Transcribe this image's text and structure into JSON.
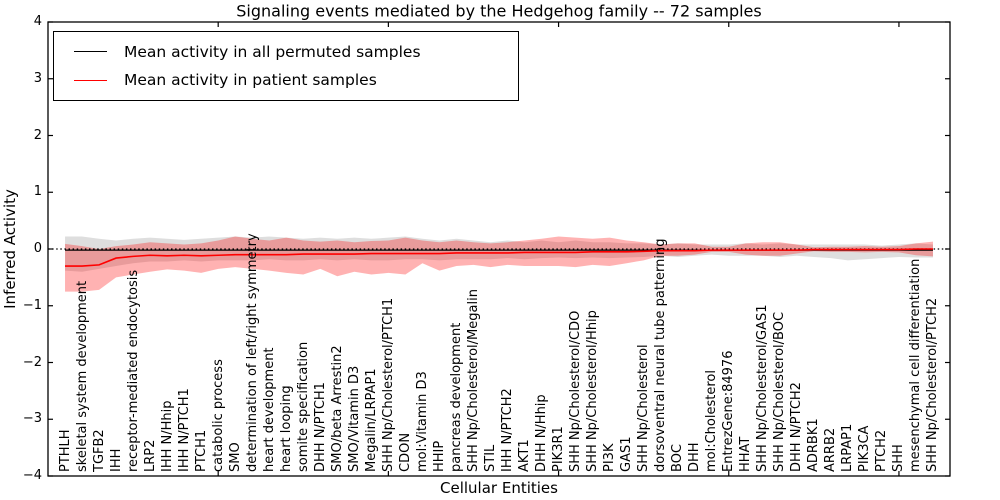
{
  "title": "Signaling events mediated by the Hedgehog family -- 72 samples",
  "legend": {
    "items": [
      {
        "label": "Mean activity in all permuted samples",
        "color": "#000000"
      },
      {
        "label": "Mean activity in patient samples",
        "color": "#ff0000"
      }
    ],
    "position": "upper left"
  },
  "axes": {
    "xlabel": "Cellular Entities",
    "ylabel": "Inferred Activity",
    "ylim": [
      -4,
      4
    ],
    "xlim": [
      0,
      53
    ],
    "yticks": [
      4,
      3,
      2,
      1,
      0,
      -1,
      -2,
      -3,
      -4
    ],
    "ytick_labels": [
      "4",
      "3",
      "2",
      "1",
      "0",
      "−1",
      "−2",
      "−3",
      "−4"
    ],
    "xticks": [
      10,
      20,
      30,
      40,
      50
    ],
    "grid": false
  },
  "chart_data": {
    "type": "line",
    "title": "Signaling events mediated by the Hedgehog family -- 72 samples",
    "xlabel": "Cellular Entities",
    "ylabel": "Inferred Activity",
    "ylim": [
      -4,
      4
    ],
    "legend_position": "upper left",
    "categories": [
      "PTHLH",
      "skeletal system development",
      "TGFB2",
      "IHH",
      "receptor-mediated endocytosis",
      "LRP2",
      "IHH N/Hhip",
      "IHH N/PTCH1",
      "PTCH1",
      "catabolic process",
      "SMO",
      "determination of left/right symmetry",
      "heart development",
      "heart looping",
      "somite specification",
      "DHH N/PTCH1",
      "SMO/beta Arrestin2",
      "SMO/Vitamin D3",
      "Megalin/LRPAP1",
      "SHH Np/Cholesterol/PTCH1",
      "CDON",
      "mol:Vitamin D3",
      "HHIP",
      "pancreas development",
      "SHH Np/Cholesterol/Megalin",
      "STIL",
      "IHH N/PTCH2",
      "AKT1",
      "DHH N/Hhip",
      "PIK3R1",
      "SHH Np/Cholesterol/CDO",
      "SHH Np/Cholesterol/Hhip",
      "PI3K",
      "GAS1",
      "SHH Np/Cholesterol",
      "dorsoventral neural tube patterning",
      "BOC",
      "DHH",
      "mol:Cholesterol",
      "EntrezGene:84976",
      "HHAT",
      "SHH Np/Cholesterol/GAS1",
      "SHH Np/Cholesterol/BOC",
      "DHH N/PTCH2",
      "ADRBK1",
      "ARRB2",
      "LRPAP1",
      "PIK3CA",
      "PTCH2",
      "SHH",
      "mesenchymal cell differentiation",
      "SHH Np/Cholesterol/PTCH2"
    ],
    "series": [
      {
        "name": "Mean activity in all permuted samples",
        "color": "#000000",
        "line_width": 1.3,
        "values": [
          -0.02,
          -0.02,
          -0.02,
          -0.02,
          -0.02,
          -0.02,
          -0.02,
          -0.02,
          -0.02,
          -0.02,
          -0.02,
          -0.02,
          -0.02,
          -0.02,
          -0.02,
          -0.02,
          -0.02,
          -0.02,
          -0.02,
          -0.02,
          -0.02,
          -0.02,
          -0.02,
          -0.02,
          -0.02,
          -0.02,
          -0.02,
          -0.02,
          -0.02,
          -0.02,
          -0.02,
          -0.02,
          -0.02,
          -0.02,
          -0.02,
          -0.02,
          -0.02,
          -0.02,
          -0.02,
          -0.02,
          -0.02,
          -0.02,
          -0.02,
          -0.02,
          -0.02,
          -0.02,
          -0.02,
          -0.02,
          -0.02,
          -0.02,
          -0.02,
          -0.02
        ]
      },
      {
        "name": "Mean activity in patient samples",
        "color": "#ff0000",
        "line_width": 1.6,
        "values": [
          -0.3,
          -0.3,
          -0.28,
          -0.16,
          -0.13,
          -0.11,
          -0.12,
          -0.11,
          -0.12,
          -0.11,
          -0.1,
          -0.1,
          -0.1,
          -0.1,
          -0.09,
          -0.09,
          -0.09,
          -0.09,
          -0.08,
          -0.08,
          -0.08,
          -0.08,
          -0.08,
          -0.07,
          -0.07,
          -0.07,
          -0.07,
          -0.06,
          -0.06,
          -0.06,
          -0.06,
          -0.05,
          -0.05,
          -0.05,
          -0.04,
          -0.03,
          -0.03,
          -0.03,
          -0.02,
          -0.02,
          -0.02,
          -0.02,
          -0.02,
          -0.02,
          -0.01,
          -0.01,
          -0.01,
          -0.01,
          -0.01,
          -0.01,
          0.0,
          0.0
        ]
      }
    ],
    "bands": [
      {
        "name": "permuted-samples-range",
        "color": "#000000",
        "opacity": 0.13,
        "upper": [
          0.22,
          0.22,
          0.18,
          0.15,
          0.18,
          0.2,
          0.18,
          0.16,
          0.18,
          0.2,
          0.22,
          0.2,
          0.22,
          0.2,
          0.18,
          0.2,
          0.18,
          0.2,
          0.18,
          0.2,
          0.22,
          0.18,
          0.15,
          0.18,
          0.15,
          0.12,
          0.15,
          0.12,
          0.15,
          0.12,
          0.15,
          0.12,
          0.12,
          0.1,
          0.1,
          0.08,
          0.1,
          0.08,
          0.08,
          0.08,
          0.1,
          0.08,
          0.1,
          0.08,
          0.08,
          0.08,
          0.08,
          0.08,
          0.06,
          0.08,
          0.1,
          0.08
        ],
        "lower": [
          -0.38,
          -0.4,
          -0.35,
          -0.3,
          -0.25,
          -0.22,
          -0.22,
          -0.2,
          -0.22,
          -0.2,
          -0.2,
          -0.2,
          -0.18,
          -0.2,
          -0.2,
          -0.18,
          -0.2,
          -0.18,
          -0.2,
          -0.2,
          -0.18,
          -0.18,
          -0.2,
          -0.18,
          -0.18,
          -0.18,
          -0.16,
          -0.18,
          -0.16,
          -0.15,
          -0.16,
          -0.15,
          -0.16,
          -0.15,
          -0.14,
          -0.12,
          -0.14,
          -0.12,
          -0.1,
          -0.12,
          -0.12,
          -0.12,
          -0.14,
          -0.12,
          -0.14,
          -0.16,
          -0.2,
          -0.18,
          -0.16,
          -0.14,
          -0.15,
          -0.15
        ]
      },
      {
        "name": "patient-samples-range",
        "color": "#ff0000",
        "opacity": 0.3,
        "upper": [
          0.09,
          0.05,
          0.0,
          0.05,
          0.08,
          0.12,
          0.1,
          0.08,
          0.1,
          0.15,
          0.22,
          0.18,
          0.15,
          0.2,
          0.15,
          0.13,
          0.15,
          0.12,
          0.14,
          0.15,
          0.2,
          0.15,
          0.12,
          0.15,
          0.12,
          0.1,
          0.12,
          0.15,
          0.18,
          0.22,
          0.2,
          0.18,
          0.2,
          0.15,
          0.12,
          0.08,
          0.1,
          0.1,
          0.04,
          0.04,
          0.1,
          0.12,
          0.12,
          0.08,
          0.03,
          0.04,
          0.04,
          0.05,
          0.04,
          0.05,
          0.1,
          0.13
        ],
        "lower": [
          -0.75,
          -0.75,
          -0.72,
          -0.5,
          -0.45,
          -0.4,
          -0.36,
          -0.38,
          -0.42,
          -0.35,
          -0.32,
          -0.35,
          -0.38,
          -0.42,
          -0.45,
          -0.35,
          -0.48,
          -0.4,
          -0.45,
          -0.42,
          -0.45,
          -0.25,
          -0.38,
          -0.3,
          -0.28,
          -0.32,
          -0.28,
          -0.3,
          -0.3,
          -0.3,
          -0.32,
          -0.28,
          -0.3,
          -0.25,
          -0.2,
          -0.12,
          -0.12,
          -0.1,
          -0.05,
          -0.05,
          -0.1,
          -0.12,
          -0.12,
          -0.08,
          -0.04,
          -0.05,
          -0.05,
          -0.06,
          -0.05,
          -0.06,
          -0.11,
          -0.13
        ]
      }
    ],
    "zero_line": {
      "y": 0,
      "style": "dotted",
      "color": "#000000"
    }
  }
}
